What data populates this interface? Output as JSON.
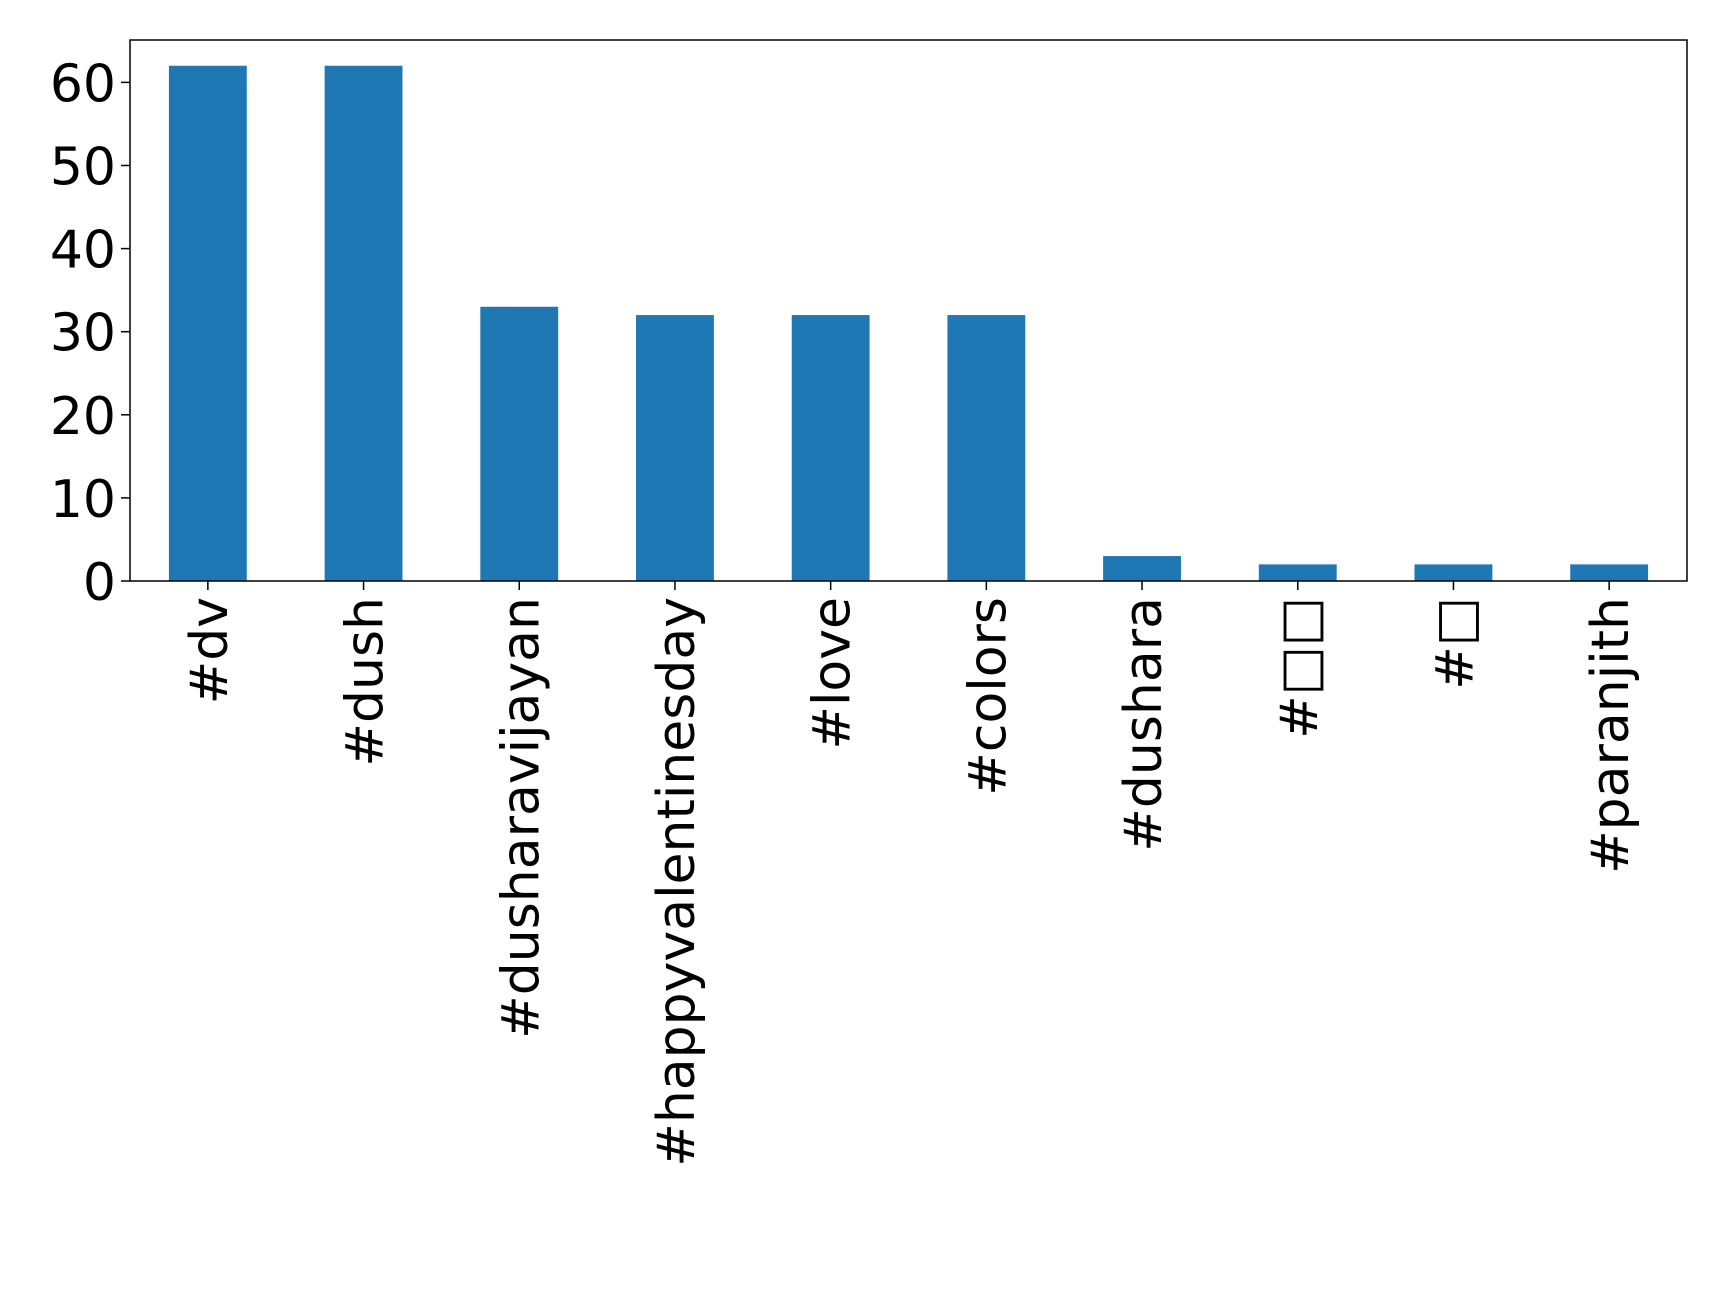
{
  "chart_data": {
    "type": "bar",
    "categories": [
      "#dv",
      "#dush",
      "#dusharavijayan",
      "#happyvalentinesday",
      "#love",
      "#colors",
      "#dushara",
      "#□□",
      "#□",
      "#paranjith"
    ],
    "values": [
      62,
      62,
      33,
      32,
      32,
      32,
      3,
      2,
      2,
      2
    ],
    "color": "#1f77b4",
    "ylim": [
      0,
      65.1
    ],
    "yticks": [
      0,
      10,
      20,
      30,
      40,
      50,
      60
    ],
    "grid": false
  }
}
